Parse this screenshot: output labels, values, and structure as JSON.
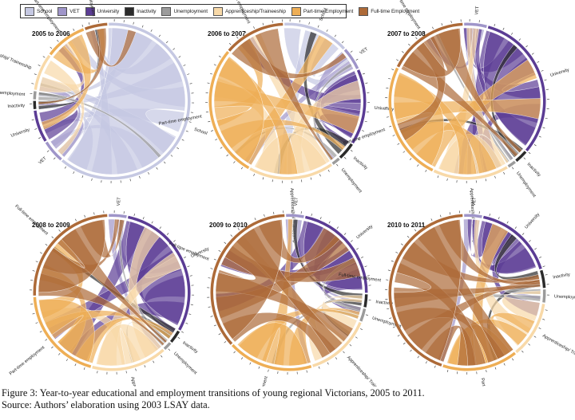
{
  "legend": [
    {
      "label": "School",
      "color": "#c5c8e2"
    },
    {
      "label": "VET",
      "color": "#9f95c9"
    },
    {
      "label": "University",
      "color": "#5b3c94"
    },
    {
      "label": "Inactivity",
      "color": "#2b2b2b"
    },
    {
      "label": "Unemployment",
      "color": "#9b9b9b"
    },
    {
      "label": "Apprenticeship/Traineeship",
      "color": "#f8d9a8"
    },
    {
      "label": "Part-time Employment",
      "color": "#eeae55"
    },
    {
      "label": "Full-time Employment",
      "color": "#ad6a38"
    }
  ],
  "panels": [
    {
      "title": "2005 to 2006",
      "labels": {
        "school": "School",
        "vet": "VET",
        "university": "University",
        "inactivity": "Inactivity",
        "unemployment": "Unemployment",
        "apprenticeship": "Apprenticeship/ Traineeship",
        "parttime": "Part-time employment",
        "fulltime": "Full-time employment"
      },
      "segments": [
        [
          "school",
          0.62
        ],
        [
          "vet",
          0.05
        ],
        [
          "university",
          0.07
        ],
        [
          "inactivity",
          0.02
        ],
        [
          "unemployment",
          0.02
        ],
        [
          "apprenticeship",
          0.08
        ],
        [
          "parttime",
          0.09
        ],
        [
          "fulltime",
          0.05
        ]
      ]
    },
    {
      "title": "2006 to 2007",
      "labels": {
        "school": "School",
        "vet": "VET",
        "university": "University",
        "inactivity": "Inactivity",
        "unemployment": "Unemployment",
        "apprenticeship": "Apprenticeship/ Traineeship",
        "parttime": "Part-time employment",
        "fulltime": "Full-time employment"
      },
      "segments": [
        [
          "school",
          0.14
        ],
        [
          "vet",
          0.05
        ],
        [
          "university",
          0.16
        ],
        [
          "inactivity",
          0.04
        ],
        [
          "unemployment",
          0.02
        ],
        [
          "apprenticeship",
          0.18
        ],
        [
          "parttime",
          0.28
        ],
        [
          "fulltime",
          0.13
        ]
      ]
    },
    {
      "title": "2007 to 2008",
      "labels": {
        "vet": "VET",
        "university": "University",
        "inactivity": "Inactivity",
        "unemployment": "Unemployment",
        "apprenticeship": "Apprenticeship/ Traineeship",
        "parttime": "Part-time employment",
        "fulltime": "Full-time employment"
      },
      "segments": [
        [
          "vet",
          0.05
        ],
        [
          "university",
          0.32
        ],
        [
          "inactivity",
          0.03
        ],
        [
          "unemployment",
          0.02
        ],
        [
          "apprenticeship",
          0.16
        ],
        [
          "parttime",
          0.25
        ],
        [
          "fulltime",
          0.17
        ]
      ]
    },
    {
      "title": "2008 to 2009",
      "labels": {
        "vet": "VET",
        "university": "University",
        "inactivity": "Inactivity",
        "unemployment": "Unemployment",
        "apprenticeship": "Apprenticeship/ Traineeship",
        "parttime": "Part-time employment",
        "fulltime": "Full-time employment"
      },
      "segments": [
        [
          "vet",
          0.04
        ],
        [
          "university",
          0.3
        ],
        [
          "inactivity",
          0.03
        ],
        [
          "unemployment",
          0.02
        ],
        [
          "apprenticeship",
          0.16
        ],
        [
          "parttime",
          0.2
        ],
        [
          "fulltime",
          0.25
        ]
      ]
    },
    {
      "title": "2009 to 2010",
      "labels": {
        "vet": "VET",
        "university": "University",
        "inactivity": "Inactivity",
        "unemployment": "Unemployment",
        "apprenticeship": "Apprenticeship/ Traineeship",
        "parttime": "Part-time employment",
        "fulltime": "Full-time employment"
      },
      "segments": [
        [
          "vet",
          0.04
        ],
        [
          "university",
          0.22
        ],
        [
          "inactivity",
          0.03
        ],
        [
          "unemployment",
          0.03
        ],
        [
          "apprenticeship",
          0.14
        ],
        [
          "parttime",
          0.18
        ],
        [
          "fulltime",
          0.36
        ]
      ]
    },
    {
      "title": "2010 to 2011",
      "labels": {
        "vet": "VET",
        "university": "University",
        "inactivity": "Inactivity",
        "unemployment": "Unemployment",
        "apprenticeship": "Apprenticeship/ Traineeship",
        "parttime": "Part-time employment",
        "fulltime": "Full-time employment"
      },
      "segments": [
        [
          "vet",
          0.04
        ],
        [
          "university",
          0.17
        ],
        [
          "inactivity",
          0.04
        ],
        [
          "unemployment",
          0.03
        ],
        [
          "apprenticeship",
          0.12
        ],
        [
          "parttime",
          0.16
        ],
        [
          "fulltime",
          0.44
        ]
      ]
    }
  ],
  "caption": {
    "line1": "Figure 3: Year-to-year educational and employment transitions of young regional Victorians, 2005 to 2011.",
    "line2": "Source: Authors’ elaboration using 2003 LSAY data."
  }
}
